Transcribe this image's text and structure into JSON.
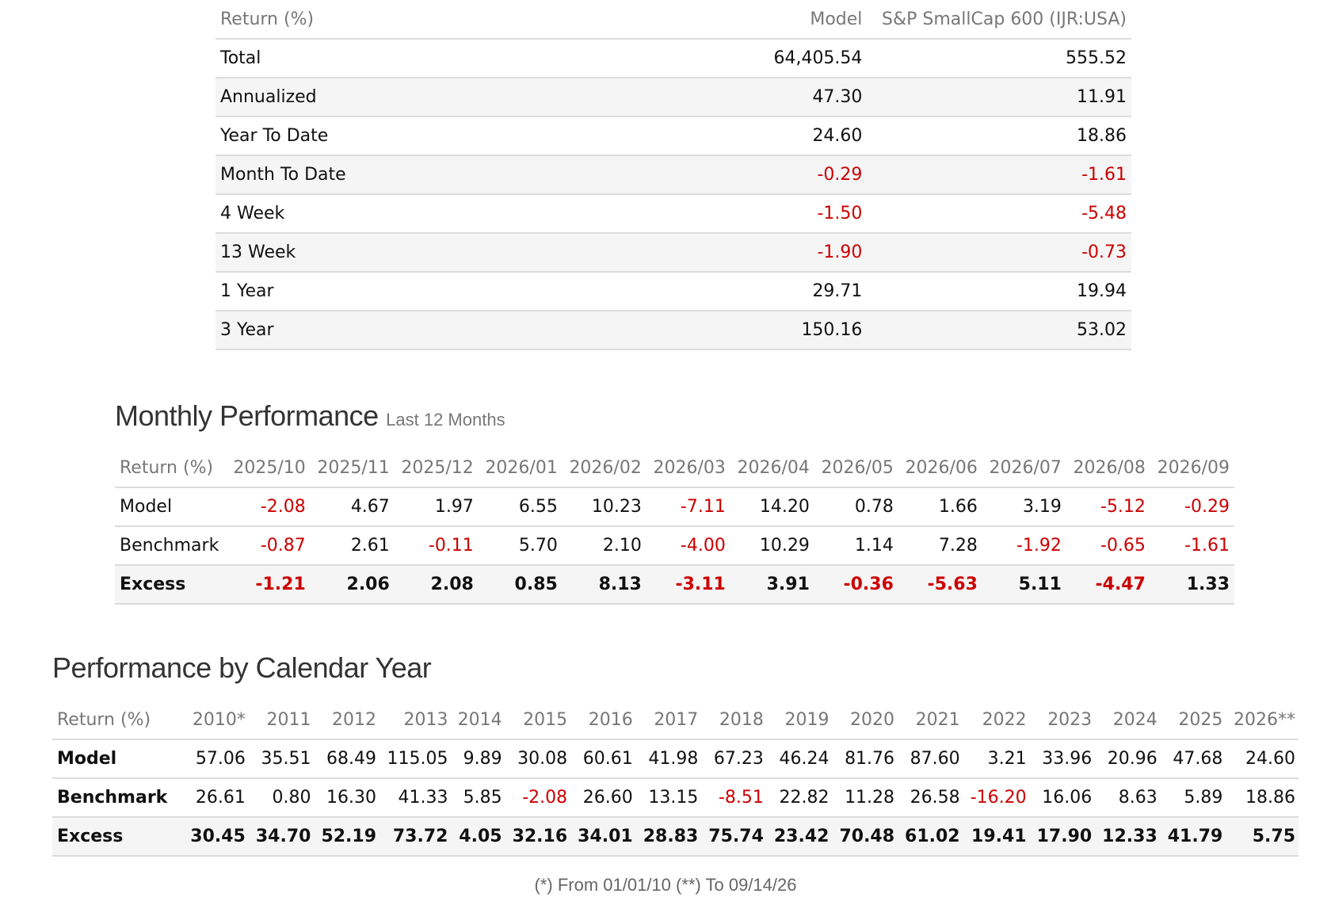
{
  "summary": {
    "headers": [
      "Return (%)",
      "Model",
      "S&P SmallCap 600 (IJR:USA)"
    ],
    "rows": [
      {
        "label": "Total",
        "model": "64,405.54",
        "bench": "555.52"
      },
      {
        "label": "Annualized",
        "model": "47.30",
        "bench": "11.91"
      },
      {
        "label": "Year To Date",
        "model": "24.60",
        "bench": "18.86"
      },
      {
        "label": "Month To Date",
        "model": "-0.29",
        "bench": "-1.61"
      },
      {
        "label": "4 Week",
        "model": "-1.50",
        "bench": "-5.48"
      },
      {
        "label": "13 Week",
        "model": "-1.90",
        "bench": "-0.73"
      },
      {
        "label": "1 Year",
        "model": "29.71",
        "bench": "19.94"
      },
      {
        "label": "3 Year",
        "model": "150.16",
        "bench": "53.02"
      }
    ]
  },
  "monthly": {
    "title": "Monthly Performance",
    "subtitle": "Last 12 Months",
    "header_label": "Return (%)",
    "columns": [
      "2025/10",
      "2025/11",
      "2025/12",
      "2026/01",
      "2026/02",
      "2026/03",
      "2026/04",
      "2026/05",
      "2026/06",
      "2026/07",
      "2026/08",
      "2026/09"
    ],
    "rows": [
      {
        "label": "Model",
        "values": [
          "-2.08",
          "4.67",
          "1.97",
          "6.55",
          "10.23",
          "-7.11",
          "14.20",
          "0.78",
          "1.66",
          "3.19",
          "-5.12",
          "-0.29"
        ]
      },
      {
        "label": "Benchmark",
        "values": [
          "-0.87",
          "2.61",
          "-0.11",
          "5.70",
          "2.10",
          "-4.00",
          "10.29",
          "1.14",
          "7.28",
          "-1.92",
          "-0.65",
          "-1.61"
        ]
      },
      {
        "label": "Excess",
        "values": [
          "-1.21",
          "2.06",
          "2.08",
          "0.85",
          "8.13",
          "-3.11",
          "3.91",
          "-0.36",
          "-5.63",
          "5.11",
          "-4.47",
          "1.33"
        ]
      }
    ]
  },
  "calendar": {
    "title": "Performance by Calendar Year",
    "header_label": "Return (%)",
    "columns": [
      "2010*",
      "2011",
      "2012",
      "2013",
      "2014",
      "2015",
      "2016",
      "2017",
      "2018",
      "2019",
      "2020",
      "2021",
      "2022",
      "2023",
      "2024",
      "2025",
      "2026**"
    ],
    "rows": [
      {
        "label": "Model",
        "values": [
          "57.06",
          "35.51",
          "68.49",
          "115.05",
          "9.89",
          "30.08",
          "60.61",
          "41.98",
          "67.23",
          "46.24",
          "81.76",
          "87.60",
          "3.21",
          "33.96",
          "20.96",
          "47.68",
          "24.60"
        ]
      },
      {
        "label": "Benchmark",
        "values": [
          "26.61",
          "0.80",
          "16.30",
          "41.33",
          "5.85",
          "-2.08",
          "26.60",
          "13.15",
          "-8.51",
          "22.82",
          "11.28",
          "26.58",
          "-16.20",
          "16.06",
          "8.63",
          "5.89",
          "18.86"
        ]
      },
      {
        "label": "Excess",
        "values": [
          "30.45",
          "34.70",
          "52.19",
          "73.72",
          "4.05",
          "32.16",
          "34.01",
          "28.83",
          "75.74",
          "23.42",
          "70.48",
          "61.02",
          "19.41",
          "17.90",
          "12.33",
          "41.79",
          "5.75"
        ]
      }
    ]
  },
  "footnote": "(*) From 01/01/10  (**) To 09/14/26",
  "colors": {
    "negative": "#cc0000",
    "header_text": "#777777",
    "row_alt": "#f5f5f5"
  }
}
